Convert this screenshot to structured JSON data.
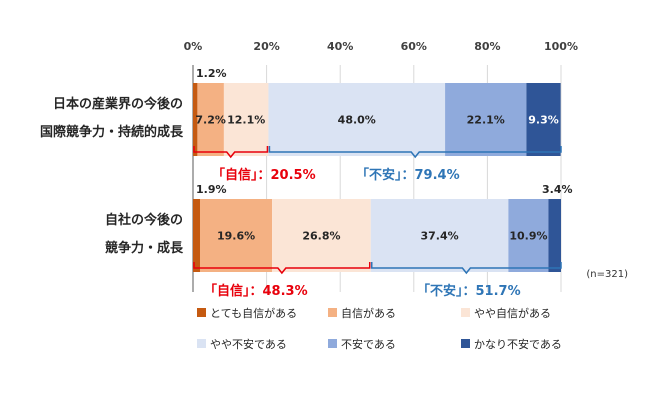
{
  "chart_data": {
    "type": "bar",
    "orientation": "horizontal",
    "stacked": true,
    "percent": true,
    "xlim": [
      0,
      100
    ],
    "x_ticks": [
      "0%",
      "20%",
      "40%",
      "60%",
      "80%",
      "100%"
    ],
    "grid": true,
    "legend_position": "bottom",
    "categories": [
      {
        "lines": [
          "日本の産業界の今後の",
          "国際競争力・持続的成長"
        ]
      },
      {
        "lines": [
          "自社の今後の",
          "競争力・成長"
        ]
      }
    ],
    "series": [
      {
        "name": "とても自信がある",
        "color": "#c55a11",
        "values": [
          1.2,
          1.9
        ]
      },
      {
        "name": "自信がある",
        "color": "#f4b183",
        "values": [
          7.2,
          19.6
        ]
      },
      {
        "name": "やや自信がある",
        "color": "#fbe5d6",
        "values": [
          12.1,
          26.8
        ]
      },
      {
        "name": "やや不安である",
        "color": "#dae3f3",
        "values": [
          48.0,
          37.4
        ]
      },
      {
        "name": "不安である",
        "color": "#8faadc",
        "values": [
          22.1,
          10.9
        ]
      },
      {
        "name": "かなり不安である",
        "color": "#2f5597",
        "values": [
          9.3,
          3.4
        ]
      }
    ],
    "data_labels": [
      [
        "1.2%",
        "7.2%",
        "12.1%",
        "48.0%",
        "22.1%",
        "9.3%"
      ],
      [
        "1.9%",
        "19.6%",
        "26.8%",
        "37.4%",
        "10.9%",
        "3.4%"
      ]
    ],
    "brackets": [
      {
        "confident_label": "「自信」：20.5%",
        "anxious_label": "「不安」：79.4%"
      },
      {
        "confident_label": "「自信」：48.3%",
        "anxious_label": "「不安」：51.7%"
      }
    ],
    "confident_color": "#e8000b",
    "anxious_color": "#2e75b6",
    "note": "(n=321)"
  }
}
